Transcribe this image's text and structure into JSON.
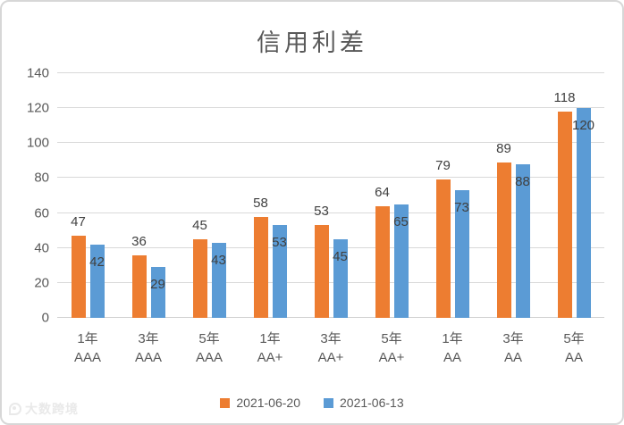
{
  "chart_data": {
    "type": "bar",
    "title": "信用利差",
    "categories": [
      {
        "line1": "1年",
        "line2": "AAA"
      },
      {
        "line1": "3年",
        "line2": "AAA"
      },
      {
        "line1": "5年",
        "line2": "AAA"
      },
      {
        "line1": "1年",
        "line2": "AA+"
      },
      {
        "line1": "3年",
        "line2": "AA+"
      },
      {
        "line1": "5年",
        "line2": "AA+"
      },
      {
        "line1": "1年",
        "line2": "AA"
      },
      {
        "line1": "3年",
        "line2": "AA"
      },
      {
        "line1": "5年",
        "line2": "AA"
      }
    ],
    "series": [
      {
        "name": "2021-06-20",
        "color": "#ED7D31",
        "label_position": "outside-end",
        "values": [
          47,
          36,
          45,
          58,
          53,
          64,
          79,
          89,
          118
        ]
      },
      {
        "name": "2021-06-13",
        "color": "#5B9BD5",
        "label_position": "inside-end",
        "values": [
          42,
          29,
          43,
          53,
          45,
          65,
          73,
          88,
          120
        ]
      }
    ],
    "ylim": [
      0,
      140
    ],
    "yticks": [
      0,
      20,
      40,
      60,
      80,
      100,
      120,
      140
    ],
    "grid": true,
    "legend_position": "bottom",
    "gridline_color": "#D9D9D9",
    "axis_text_color": "#595959",
    "data_label_color": "#404040",
    "xlabel": "",
    "ylabel": ""
  },
  "watermark": {
    "text": "大数跨境"
  }
}
